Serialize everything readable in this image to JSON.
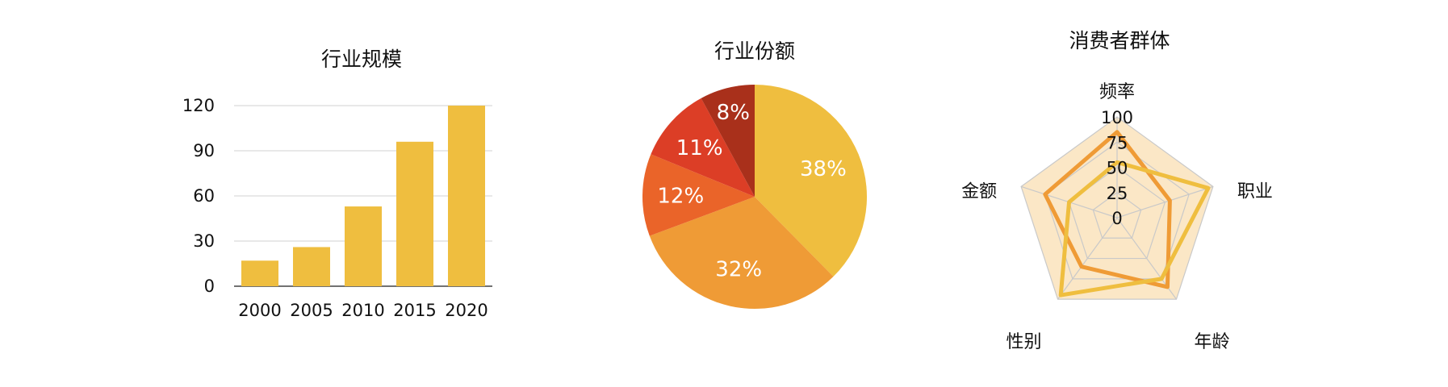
{
  "chart_data": [
    {
      "type": "bar",
      "title": "行业规模",
      "categories": [
        "2000",
        "2005",
        "2010",
        "2015",
        "2020"
      ],
      "values": [
        17,
        26,
        53,
        96,
        120
      ],
      "ylim": [
        0,
        120
      ],
      "yticks": [
        "0",
        "30",
        "60",
        "90",
        "120"
      ],
      "grid": true,
      "color": "#EFBE3F"
    },
    {
      "type": "pie",
      "title": "行业份额",
      "labels": [
        "38%",
        "32%",
        "12%",
        "11%",
        "8%"
      ],
      "values": [
        38,
        32,
        12,
        11,
        8
      ],
      "colors": [
        "#EFBE3F",
        "#EF9B36",
        "#EA6429",
        "#DC3E26",
        "#A9301B"
      ]
    },
    {
      "type": "radar",
      "title": "消费者群体",
      "axes": [
        "频率",
        "职业",
        "年龄",
        "性别",
        "金额"
      ],
      "rlim": [
        0,
        100
      ],
      "rticks": [
        "0",
        "25",
        "50",
        "75",
        "100"
      ],
      "series": [
        {
          "values": [
            85,
            55,
            85,
            60,
            75
          ],
          "color": "#EF9B36"
        },
        {
          "values": [
            55,
            95,
            75,
            95,
            50
          ],
          "color": "#EFBE3F"
        }
      ],
      "fill_color": "#FBE7C6"
    }
  ]
}
